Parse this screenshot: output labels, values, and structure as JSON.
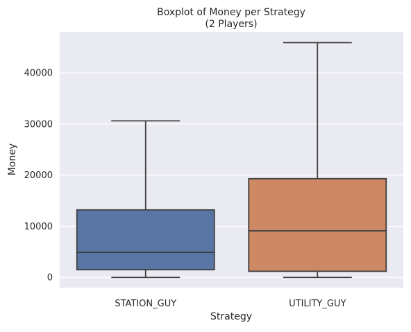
{
  "chart_data": {
    "type": "box",
    "title": "Boxplot of Money per Strategy",
    "subtitle": "(2 Players)",
    "xlabel": "Strategy",
    "ylabel": "Money",
    "categories": [
      "STATION_GUY",
      "UTILITY_GUY"
    ],
    "y_ticks": [
      0,
      10000,
      20000,
      30000,
      40000
    ],
    "ylim": [
      -2000,
      48000
    ],
    "grid": true,
    "boxes": [
      {
        "category": "STATION_GUY",
        "min": 0,
        "q1": 1500,
        "median": 4900,
        "q3": 13200,
        "max": 30600,
        "color": "#5975a4"
      },
      {
        "category": "UTILITY_GUY",
        "min": 0,
        "q1": 1200,
        "median": 9100,
        "q3": 19300,
        "max": 45900,
        "color": "#cc8963"
      }
    ]
  },
  "colors": {
    "plot_background": "#eaeaf2",
    "grid": "#ffffff",
    "line": "#3f3f3f"
  }
}
